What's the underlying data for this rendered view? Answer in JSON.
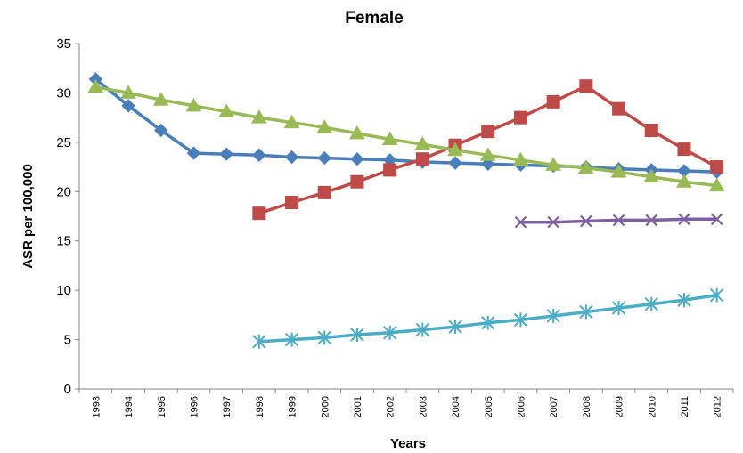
{
  "chart_data": {
    "type": "line",
    "title": "Female",
    "xlabel": "Years",
    "ylabel": "ASR per 100,000",
    "ylim": [
      0,
      35
    ],
    "ytick_step": 5,
    "grid": false,
    "legend": "none",
    "categories": [
      "1993",
      "1994",
      "1995",
      "1996",
      "1997",
      "1998",
      "1999",
      "2000",
      "2001",
      "2002",
      "2003",
      "2004",
      "2005",
      "2006",
      "2007",
      "2008",
      "2009",
      "2010",
      "2011",
      "2012"
    ],
    "series": [
      {
        "color": "#4a7ebb",
        "marker": "diamond",
        "values": [
          31.4,
          28.7,
          26.2,
          23.9,
          23.8,
          23.7,
          23.5,
          23.4,
          23.3,
          23.2,
          23.0,
          22.9,
          22.8,
          22.7,
          22.6,
          22.5,
          22.3,
          22.2,
          22.1,
          22.0
        ]
      },
      {
        "color": "#be4b48",
        "marker": "square",
        "values": [
          null,
          null,
          null,
          null,
          null,
          17.8,
          18.9,
          19.9,
          21.0,
          22.2,
          23.3,
          24.7,
          26.1,
          27.5,
          29.1,
          30.7,
          28.4,
          26.2,
          24.3,
          22.5
        ]
      },
      {
        "color": "#98b954",
        "marker": "triangle",
        "values": [
          30.6,
          30.0,
          29.3,
          28.7,
          28.1,
          27.5,
          27.0,
          26.5,
          25.9,
          25.3,
          24.8,
          24.2,
          23.7,
          23.2,
          22.7,
          22.4,
          22.0,
          21.5,
          21.0,
          20.6
        ]
      },
      {
        "color": "#7d60a0",
        "marker": "x",
        "values": [
          null,
          null,
          null,
          null,
          null,
          null,
          null,
          null,
          null,
          null,
          null,
          null,
          null,
          16.9,
          16.9,
          17.0,
          17.1,
          17.1,
          17.2,
          17.2
        ]
      },
      {
        "color": "#4bacc6",
        "marker": "star",
        "values": [
          null,
          null,
          null,
          null,
          null,
          4.8,
          5.0,
          5.2,
          5.5,
          5.7,
          6.0,
          6.3,
          6.7,
          7.0,
          7.4,
          7.8,
          8.2,
          8.6,
          9.0,
          9.5
        ]
      }
    ]
  }
}
